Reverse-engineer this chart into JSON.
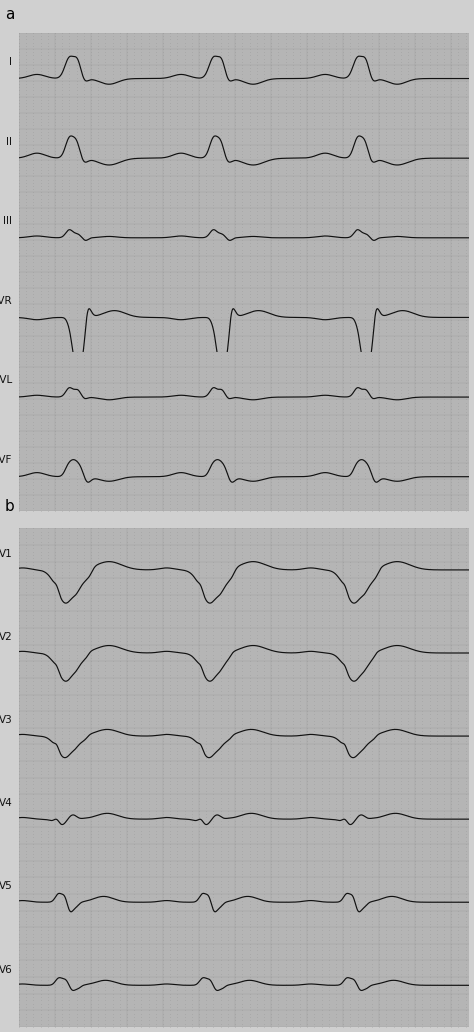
{
  "background_color": "#b8b8b8",
  "ecg_color": "#111111",
  "label_color": "#111111",
  "panel_a_label": "a",
  "panel_b_label": "b",
  "leads_a": [
    "I",
    "II",
    "III",
    "aVR",
    "aVL",
    "aVF"
  ],
  "leads_b": [
    "V1",
    "V2",
    "V3",
    "V4",
    "V5",
    "V6"
  ],
  "figsize": [
    4.74,
    10.32
  ],
  "dpi": 100,
  "grid_bg": "#b5b5b5",
  "grid_major": "#9a9a9a",
  "grid_dot": "#a0a0a0"
}
